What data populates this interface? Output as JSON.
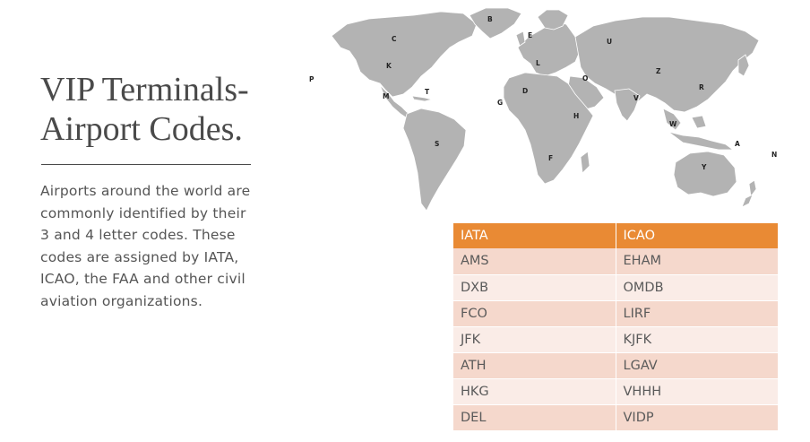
{
  "title": {
    "line1": "VIP Terminals-",
    "line2": "Airport Codes."
  },
  "description": {
    "lines": [
      "Airports around the world are",
      "commonly identified by their",
      "3 and 4 letter codes. These",
      "codes are assigned by IATA,",
      "ICAO, the FAA and other civil",
      "aviation organizations."
    ]
  },
  "map": {
    "markers": [
      "B",
      "C",
      "E",
      "U",
      "K",
      "L",
      "P",
      "M",
      "T",
      "D",
      "G",
      "O",
      "Z",
      "R",
      "V",
      "H",
      "S",
      "W",
      "A",
      "N",
      "F",
      "Y"
    ],
    "land_color": "#b3b3b3"
  },
  "table": {
    "headers": [
      "IATA",
      "ICAO"
    ],
    "rows": [
      [
        "AMS",
        "EHAM"
      ],
      [
        "DXB",
        "OMDB"
      ],
      [
        "FCO",
        "LIRF"
      ],
      [
        "JFK",
        "KJFK"
      ],
      [
        "ATH",
        "LGAV"
      ],
      [
        "HKG",
        "VHHH"
      ],
      [
        "DEL",
        "VIDP"
      ]
    ],
    "header_color": "#e98a34",
    "row_colors": [
      "#f5d8cc",
      "#faece7"
    ]
  }
}
